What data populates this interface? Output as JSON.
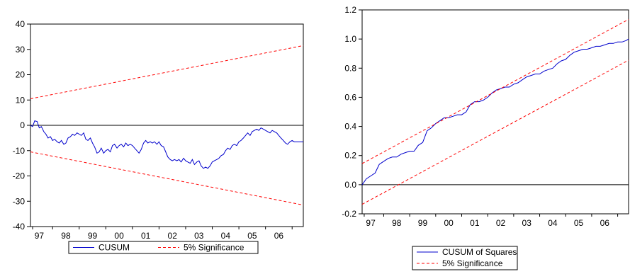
{
  "chart_data": [
    {
      "type": "line",
      "title": "",
      "xlabel": "",
      "ylabel": "",
      "ylim": [
        -40,
        40
      ],
      "y_ticks": [
        40,
        30,
        20,
        10,
        0,
        -10,
        -20,
        -30,
        -40
      ],
      "x_range": [
        1996.67,
        2006.92
      ],
      "x_tick_labels": [
        "97",
        "98",
        "99",
        "00",
        "01",
        "02",
        "03",
        "04",
        "05",
        "06"
      ],
      "x_label_positions": [
        1997.0,
        1998.0,
        1999.0,
        2000.0,
        2001.0,
        2002.0,
        2003.0,
        2004.0,
        2005.0,
        2006.0
      ],
      "x_minor_ticks": [
        1996.75,
        1997.5,
        1998.5,
        1999.5,
        2000.5,
        2001.5,
        2002.5,
        2003.5,
        2004.5,
        2005.5,
        2006.5
      ],
      "zero_line": 0,
      "grid": false,
      "legend_position": "bottom",
      "series": [
        {
          "name": "CUSUM",
          "color": "#0000cc",
          "style": "solid",
          "x": [
            1996.67,
            1996.75,
            1996.83,
            1996.92,
            1997.0,
            1997.08,
            1997.17,
            1997.25,
            1997.33,
            1997.42,
            1997.5,
            1997.58,
            1997.67,
            1997.75,
            1997.83,
            1997.92,
            1998.0,
            1998.08,
            1998.17,
            1998.25,
            1998.33,
            1998.42,
            1998.5,
            1998.58,
            1998.67,
            1998.75,
            1998.83,
            1998.92,
            1999.0,
            1999.08,
            1999.17,
            1999.25,
            1999.33,
            1999.42,
            1999.5,
            1999.58,
            1999.67,
            1999.75,
            1999.83,
            1999.92,
            2000.0,
            2000.08,
            2000.17,
            2000.25,
            2000.33,
            2000.42,
            2000.5,
            2000.58,
            2000.67,
            2000.75,
            2000.83,
            2000.92,
            2001.0,
            2001.08,
            2001.17,
            2001.25,
            2001.33,
            2001.42,
            2001.5,
            2001.58,
            2001.67,
            2001.75,
            2001.83,
            2001.92,
            2002.0,
            2002.08,
            2002.17,
            2002.25,
            2002.33,
            2002.42,
            2002.5,
            2002.58,
            2002.67,
            2002.75,
            2002.83,
            2002.92,
            2003.0,
            2003.08,
            2003.17,
            2003.25,
            2003.33,
            2003.42,
            2003.5,
            2003.58,
            2003.67,
            2003.75,
            2003.83,
            2003.92,
            2004.0,
            2004.08,
            2004.17,
            2004.25,
            2004.33,
            2004.42,
            2004.5,
            2004.58,
            2004.67,
            2004.75,
            2004.83,
            2004.92,
            2005.0,
            2005.08,
            2005.17,
            2005.25,
            2005.33,
            2005.42,
            2005.5,
            2005.58,
            2005.67,
            2005.75,
            2005.83,
            2005.92,
            2006.0,
            2006.08,
            2006.17,
            2006.25,
            2006.33,
            2006.42,
            2006.5,
            2006.58,
            2006.67,
            2006.75,
            2006.83,
            2006.92
          ],
          "values": [
            0.0,
            -0.5,
            1.8,
            1.5,
            -1.0,
            -0.5,
            -2.5,
            -3.5,
            -5.0,
            -4.5,
            -6.0,
            -5.5,
            -6.5,
            -7.0,
            -6.0,
            -7.5,
            -7.0,
            -5.0,
            -4.5,
            -3.5,
            -4.0,
            -3.0,
            -3.5,
            -4.0,
            -3.0,
            -5.5,
            -6.0,
            -5.0,
            -7.0,
            -8.5,
            -11.0,
            -10.5,
            -9.0,
            -11.0,
            -10.0,
            -9.5,
            -10.5,
            -8.0,
            -7.5,
            -9.0,
            -8.0,
            -7.5,
            -8.5,
            -7.0,
            -8.0,
            -7.5,
            -8.0,
            -9.0,
            -10.0,
            -11.0,
            -9.5,
            -7.0,
            -6.0,
            -7.0,
            -6.5,
            -7.0,
            -6.5,
            -7.5,
            -6.5,
            -8.0,
            -8.5,
            -10.5,
            -12.5,
            -13.5,
            -14.0,
            -13.5,
            -14.0,
            -13.5,
            -14.5,
            -13.0,
            -14.0,
            -14.5,
            -15.0,
            -13.5,
            -15.5,
            -14.5,
            -14.0,
            -16.0,
            -17.0,
            -16.5,
            -17.0,
            -16.0,
            -14.5,
            -14.0,
            -13.5,
            -13.0,
            -12.0,
            -11.5,
            -10.0,
            -9.0,
            -9.5,
            -8.0,
            -7.5,
            -8.0,
            -6.5,
            -6.0,
            -5.0,
            -4.0,
            -3.0,
            -4.0,
            -2.5,
            -2.0,
            -1.5,
            -2.0,
            -1.0,
            -1.5,
            -2.0,
            -2.5,
            -3.0,
            -2.0,
            -2.5,
            -3.0,
            -4.0,
            -5.0,
            -6.0,
            -7.0,
            -7.5,
            -6.5,
            -6.0,
            -6.5,
            -6.5,
            -6.5,
            -6.5,
            -6.5
          ]
        },
        {
          "name": "5% Significance",
          "color": "#ff0000",
          "style": "dashed",
          "x": [
            1996.67,
            2006.92
          ],
          "values": [
            10.5,
            31.5
          ]
        },
        {
          "name": "",
          "color": "#ff0000",
          "style": "dashed",
          "x": [
            1996.67,
            2006.92
          ],
          "values": [
            -10.5,
            -31.5
          ]
        }
      ],
      "legend": [
        {
          "label": "CUSUM",
          "color": "#0000cc",
          "style": "solid"
        },
        {
          "label": "5% Significance",
          "color": "#ff0000",
          "style": "dashed"
        }
      ]
    },
    {
      "type": "line",
      "title": "",
      "xlabel": "",
      "ylabel": "",
      "ylim": [
        -0.2,
        1.2
      ],
      "y_ticks": [
        "1.2",
        "1.0",
        "0.8",
        "0.6",
        "0.4",
        "0.2",
        "0.0",
        "-0.2"
      ],
      "x_range": [
        1996.67,
        2006.92
      ],
      "x_tick_labels": [
        "97",
        "98",
        "99",
        "00",
        "01",
        "02",
        "03",
        "04",
        "05",
        "06"
      ],
      "x_label_positions": [
        1997.0,
        1998.0,
        1999.0,
        2000.0,
        2001.0,
        2002.0,
        2003.0,
        2004.0,
        2005.0,
        2006.0
      ],
      "x_minor_ticks": [
        1996.75,
        1997.5,
        1998.5,
        1999.5,
        2000.5,
        2001.5,
        2002.5,
        2003.5,
        2004.5,
        2005.5,
        2006.5
      ],
      "zero_line": 0,
      "grid": false,
      "legend_position": "bottom",
      "series": [
        {
          "name": "CUSUM of Squares",
          "color": "#0000cc",
          "style": "solid",
          "x": [
            1996.67,
            1996.83,
            1997.0,
            1997.17,
            1997.33,
            1997.5,
            1997.67,
            1997.83,
            1998.0,
            1998.17,
            1998.33,
            1998.5,
            1998.67,
            1998.83,
            1999.0,
            1999.17,
            1999.33,
            1999.5,
            1999.67,
            1999.83,
            2000.0,
            2000.17,
            2000.33,
            2000.5,
            2000.67,
            2000.83,
            2001.0,
            2001.17,
            2001.33,
            2001.5,
            2001.67,
            2001.83,
            2002.0,
            2002.17,
            2002.33,
            2002.5,
            2002.67,
            2002.83,
            2003.0,
            2003.17,
            2003.33,
            2003.5,
            2003.67,
            2003.83,
            2004.0,
            2004.17,
            2004.33,
            2004.5,
            2004.67,
            2004.83,
            2005.0,
            2005.17,
            2005.33,
            2005.5,
            2005.67,
            2005.83,
            2006.0,
            2006.17,
            2006.33,
            2006.5,
            2006.67,
            2006.83,
            2006.92
          ],
          "values": [
            0.0,
            0.04,
            0.06,
            0.08,
            0.14,
            0.16,
            0.18,
            0.19,
            0.19,
            0.21,
            0.22,
            0.23,
            0.23,
            0.27,
            0.29,
            0.37,
            0.39,
            0.42,
            0.44,
            0.46,
            0.46,
            0.47,
            0.48,
            0.48,
            0.5,
            0.55,
            0.57,
            0.57,
            0.58,
            0.6,
            0.63,
            0.65,
            0.66,
            0.67,
            0.67,
            0.69,
            0.7,
            0.72,
            0.74,
            0.75,
            0.76,
            0.76,
            0.78,
            0.79,
            0.8,
            0.83,
            0.85,
            0.86,
            0.89,
            0.91,
            0.92,
            0.93,
            0.93,
            0.94,
            0.95,
            0.95,
            0.96,
            0.97,
            0.97,
            0.98,
            0.98,
            0.99,
            1.0
          ]
        },
        {
          "name": "5% Significance",
          "color": "#ff0000",
          "style": "dashed",
          "x": [
            1996.67,
            2006.92
          ],
          "values": [
            0.145,
            1.135
          ]
        },
        {
          "name": "",
          "color": "#ff0000",
          "style": "dashed",
          "x": [
            1996.67,
            2006.92
          ],
          "values": [
            -0.135,
            0.855
          ]
        }
      ],
      "legend": [
        {
          "label": "CUSUM of Squares",
          "color": "#0000cc",
          "style": "solid"
        },
        {
          "label": "5% Significance",
          "color": "#ff0000",
          "style": "dashed"
        }
      ]
    }
  ]
}
